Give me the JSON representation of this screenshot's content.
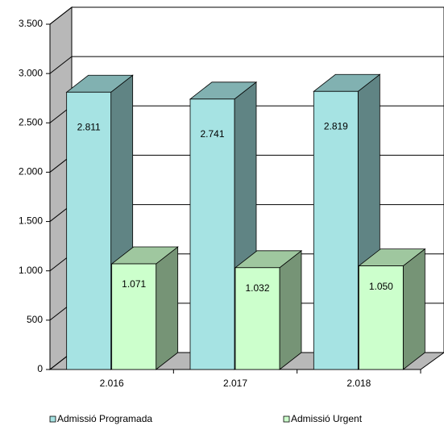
{
  "chart_data": {
    "type": "bar3d",
    "categories": [
      "2.016",
      "2.017",
      "2.018"
    ],
    "series": [
      {
        "name": "Admissió Programada",
        "color": "#a6e3e3",
        "values": [
          2811,
          2741,
          2819
        ],
        "value_labels": [
          "2.811",
          "2.741",
          "2.819"
        ]
      },
      {
        "name": "Admissió Urgent",
        "color": "#ccffcc",
        "values": [
          1071,
          1032,
          1050
        ],
        "value_labels": [
          "1.071",
          "1.032",
          "1.050"
        ]
      }
    ],
    "ylim": [
      0,
      3500
    ],
    "yticks": [
      0,
      500,
      {
        "value": 1000,
        "label": "1.000"
      },
      {
        "value": 1500,
        "label": "1.500"
      },
      {
        "value": 2000,
        "label": "2.000"
      },
      {
        "value": 2500,
        "label": "2.500"
      },
      {
        "value": 3000,
        "label": "3.000"
      },
      {
        "value": 3500,
        "label": "3.500"
      }
    ],
    "grid": true,
    "legend": "bottom"
  }
}
